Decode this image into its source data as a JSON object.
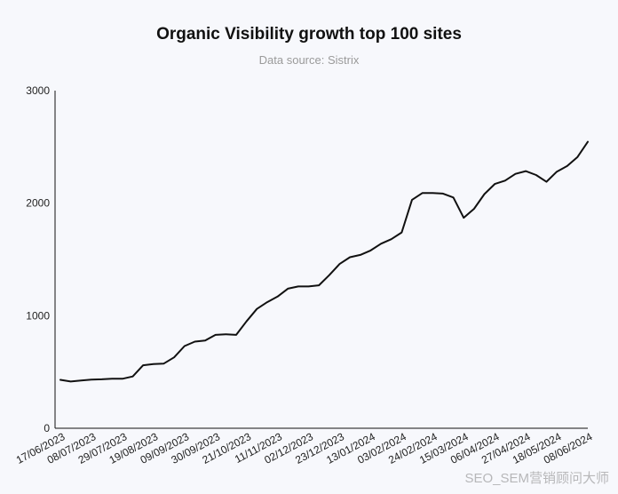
{
  "chart_data": {
    "type": "line",
    "title": "Organic Visibility growth top 100 sites",
    "subtitle": "Data source: Sistrix",
    "xlabel": "",
    "ylabel": "",
    "ylim": [
      0,
      3000
    ],
    "yticks": [
      0,
      1000,
      2000,
      3000
    ],
    "grid": false,
    "line_color": "#111111",
    "categories": [
      "17/06/2023",
      "24/06/2023",
      "01/07/2023",
      "08/07/2023",
      "15/07/2023",
      "22/07/2023",
      "29/07/2023",
      "05/08/2023",
      "12/08/2023",
      "19/08/2023",
      "26/08/2023",
      "02/09/2023",
      "09/09/2023",
      "16/09/2023",
      "23/09/2023",
      "30/09/2023",
      "07/10/2023",
      "14/10/2023",
      "21/10/2023",
      "28/10/2023",
      "04/11/2023",
      "11/11/2023",
      "18/11/2023",
      "25/11/2023",
      "02/12/2023",
      "09/12/2023",
      "16/12/2023",
      "23/12/2023",
      "30/12/2023",
      "06/01/2024",
      "13/01/2024",
      "20/01/2024",
      "27/01/2024",
      "03/02/2024",
      "10/02/2024",
      "17/02/2024",
      "24/02/2024",
      "02/03/2024",
      "09/03/2024",
      "15/03/2024",
      "23/03/2024",
      "30/03/2024",
      "06/04/2024",
      "13/04/2024",
      "20/04/2024",
      "27/04/2024",
      "04/05/2024",
      "11/05/2024",
      "18/05/2024",
      "25/05/2024",
      "01/06/2024",
      "08/06/2024"
    ],
    "xtick_labels": [
      "17/06/2023",
      "08/07/2023",
      "29/07/2023",
      "19/08/2023",
      "09/09/2023",
      "30/09/2023",
      "21/10/2023",
      "11/11/2023",
      "02/12/2023",
      "23/12/2023",
      "13/01/2024",
      "03/02/2024",
      "24/02/2024",
      "15/03/2024",
      "06/04/2024",
      "27/04/2024",
      "18/05/2024",
      "08/06/2024"
    ],
    "series": [
      {
        "values": [
          430,
          415,
          425,
          433,
          435,
          440,
          440,
          460,
          560,
          570,
          575,
          630,
          730,
          770,
          780,
          830,
          835,
          830,
          950,
          1060,
          1120,
          1170,
          1240,
          1260,
          1260,
          1270,
          1360,
          1460,
          1520,
          1540,
          1580,
          1640,
          1680,
          1740,
          2030,
          2090,
          2090,
          2085,
          2050,
          1870,
          1950,
          2080,
          2170,
          2200,
          2260,
          2285,
          2250,
          2190,
          2280,
          2330,
          2410,
          2545
        ]
      }
    ]
  },
  "watermark": "SEO_SEM营销顾问大师"
}
